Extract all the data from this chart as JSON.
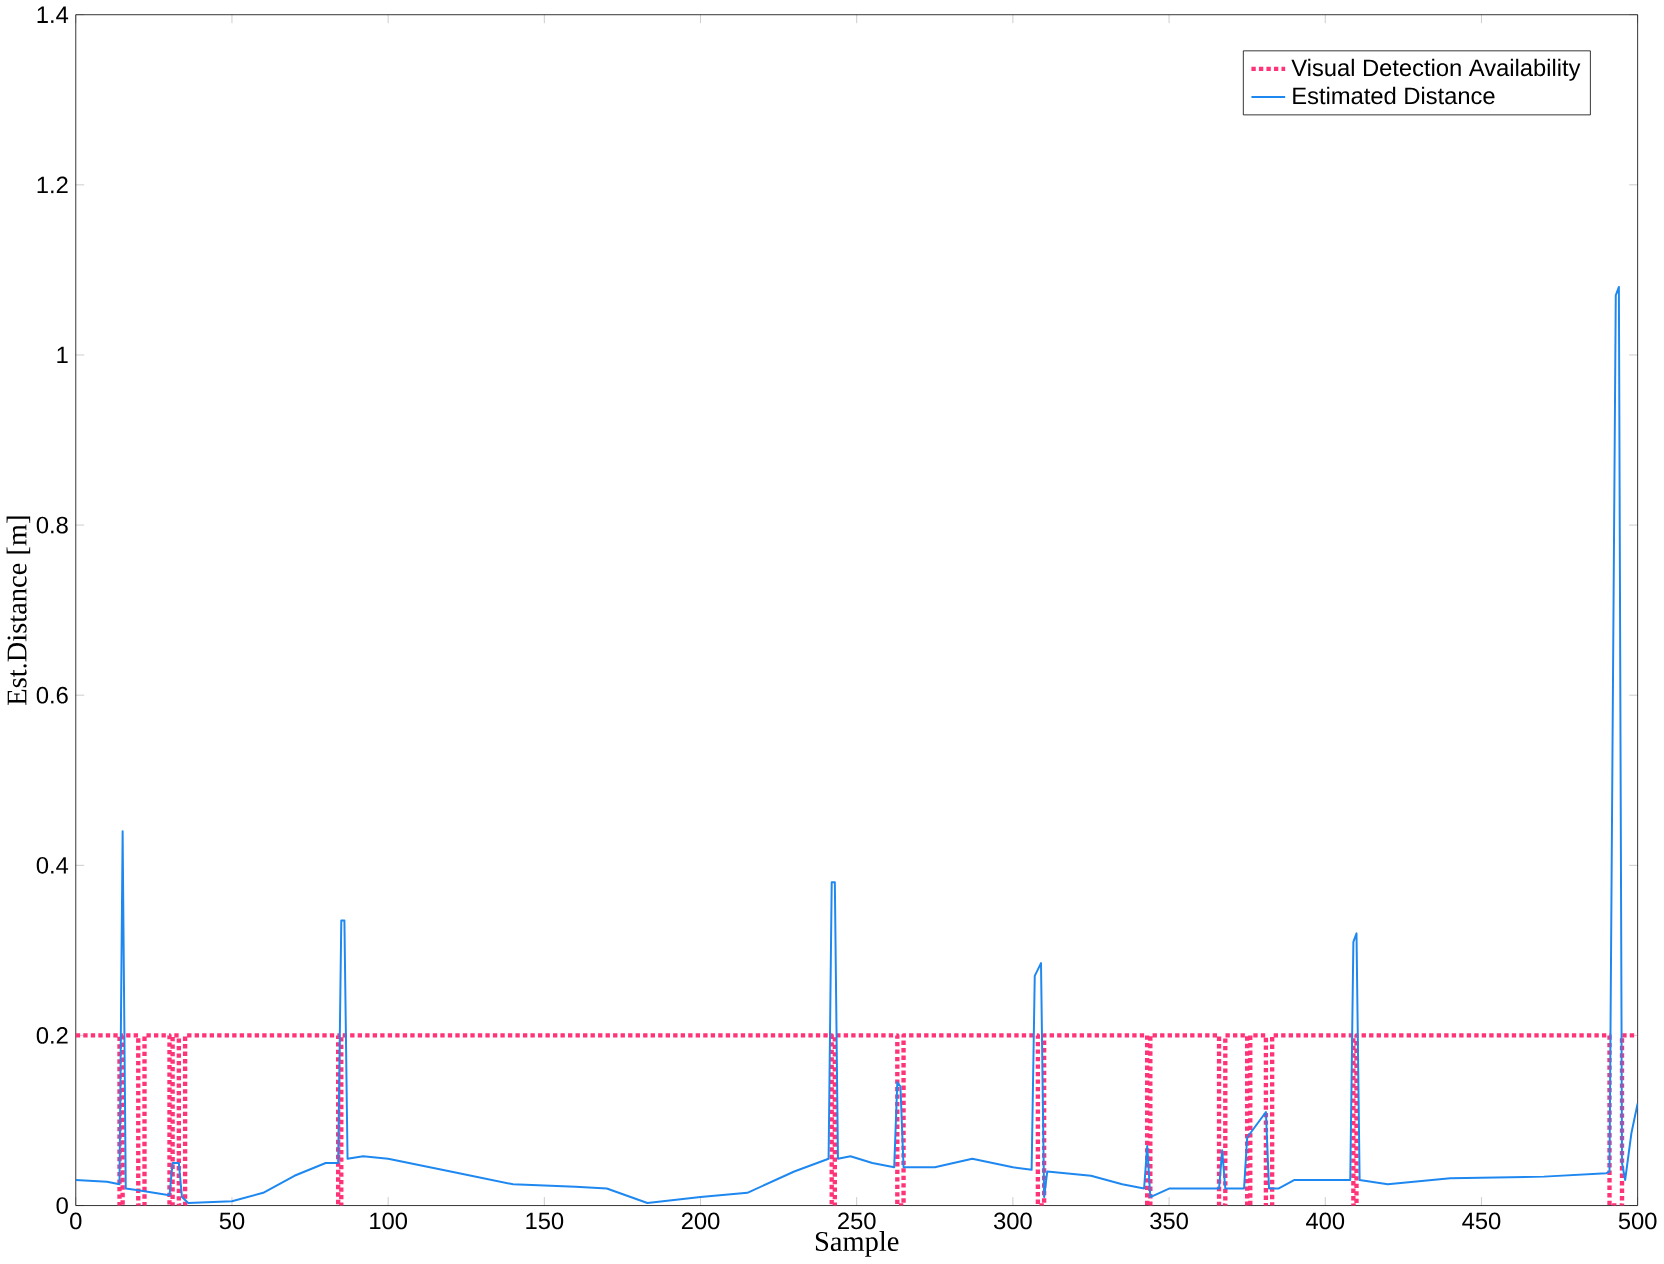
{
  "chart_data": {
    "type": "line",
    "xlabel": "Sample",
    "ylabel": "Est.Distance [m]",
    "xlim": [
      0,
      500
    ],
    "ylim": [
      0,
      1.4
    ],
    "xticks": [
      0,
      50,
      100,
      150,
      200,
      250,
      300,
      350,
      400,
      450,
      500
    ],
    "yticks": [
      0,
      0.2,
      0.4,
      0.6,
      0.8,
      1,
      1.2,
      1.4
    ],
    "legend": "top right",
    "marker": "none",
    "series": [
      {
        "name": "Visual Detection Availability",
        "color": "#ff3377",
        "line_style": "dotted",
        "x": [
          0,
          14,
          14,
          15,
          15,
          20,
          20,
          22,
          22,
          30,
          30,
          31,
          31,
          33,
          33,
          35,
          35,
          84,
          84,
          85,
          85,
          242,
          242,
          243,
          243,
          263,
          263,
          265,
          265,
          308,
          308,
          310,
          310,
          343,
          343,
          344,
          344,
          366,
          366,
          368,
          368,
          375,
          375,
          376,
          376,
          381,
          381,
          383,
          383,
          409,
          409,
          410,
          410,
          491,
          491,
          495,
          495,
          500
        ],
        "values": [
          0.2,
          0.2,
          0,
          0,
          0.2,
          0.2,
          0,
          0,
          0.2,
          0.2,
          0,
          0,
          0.2,
          0.2,
          0,
          0,
          0.2,
          0.2,
          0,
          0,
          0.2,
          0.2,
          0,
          0,
          0.2,
          0.2,
          0,
          0,
          0.2,
          0.2,
          0,
          0,
          0.2,
          0.2,
          0,
          0,
          0.2,
          0.2,
          0,
          0,
          0.2,
          0.2,
          0,
          0,
          0.2,
          0.2,
          0,
          0,
          0.2,
          0.2,
          0,
          0,
          0.2,
          0.2,
          0,
          0,
          0.2,
          0.2
        ]
      },
      {
        "name": "Estimated Distance",
        "color": "#1e88f0",
        "line_style": "solid",
        "x": [
          0,
          10,
          14,
          15,
          16,
          20,
          25,
          30,
          31,
          33,
          34,
          36,
          50,
          60,
          70,
          80,
          84,
          85,
          86,
          87,
          92,
          100,
          120,
          140,
          160,
          170,
          183,
          200,
          215,
          230,
          241,
          242,
          243,
          244,
          248,
          255,
          262,
          263,
          264,
          265,
          275,
          287,
          300,
          306,
          307,
          309,
          310,
          311,
          325,
          335,
          342,
          343,
          344,
          350,
          366,
          367,
          368,
          374,
          375,
          381,
          382,
          385,
          390,
          400,
          408,
          409,
          410,
          411,
          420,
          440,
          470,
          490,
          491,
          492,
          493,
          494,
          495,
          496,
          498,
          500
        ],
        "values": [
          0.03,
          0.028,
          0.025,
          0.44,
          0.02,
          0.018,
          0.015,
          0.012,
          0.05,
          0.05,
          0.01,
          0.003,
          0.005,
          0.015,
          0.035,
          0.05,
          0.05,
          0.335,
          0.335,
          0.055,
          0.058,
          0.055,
          0.04,
          0.025,
          0.022,
          0.02,
          0.003,
          0.01,
          0.015,
          0.04,
          0.055,
          0.38,
          0.38,
          0.055,
          0.058,
          0.05,
          0.045,
          0.145,
          0.14,
          0.045,
          0.045,
          0.055,
          0.045,
          0.042,
          0.27,
          0.285,
          0.01,
          0.04,
          0.035,
          0.025,
          0.02,
          0.07,
          0.01,
          0.02,
          0.02,
          0.065,
          0.02,
          0.02,
          0.08,
          0.11,
          0.02,
          0.02,
          0.03,
          0.03,
          0.03,
          0.31,
          0.32,
          0.03,
          0.025,
          0.032,
          0.034,
          0.038,
          0.04,
          0.56,
          1.07,
          1.08,
          0.05,
          0.03,
          0.085,
          0.12
        ]
      }
    ]
  }
}
